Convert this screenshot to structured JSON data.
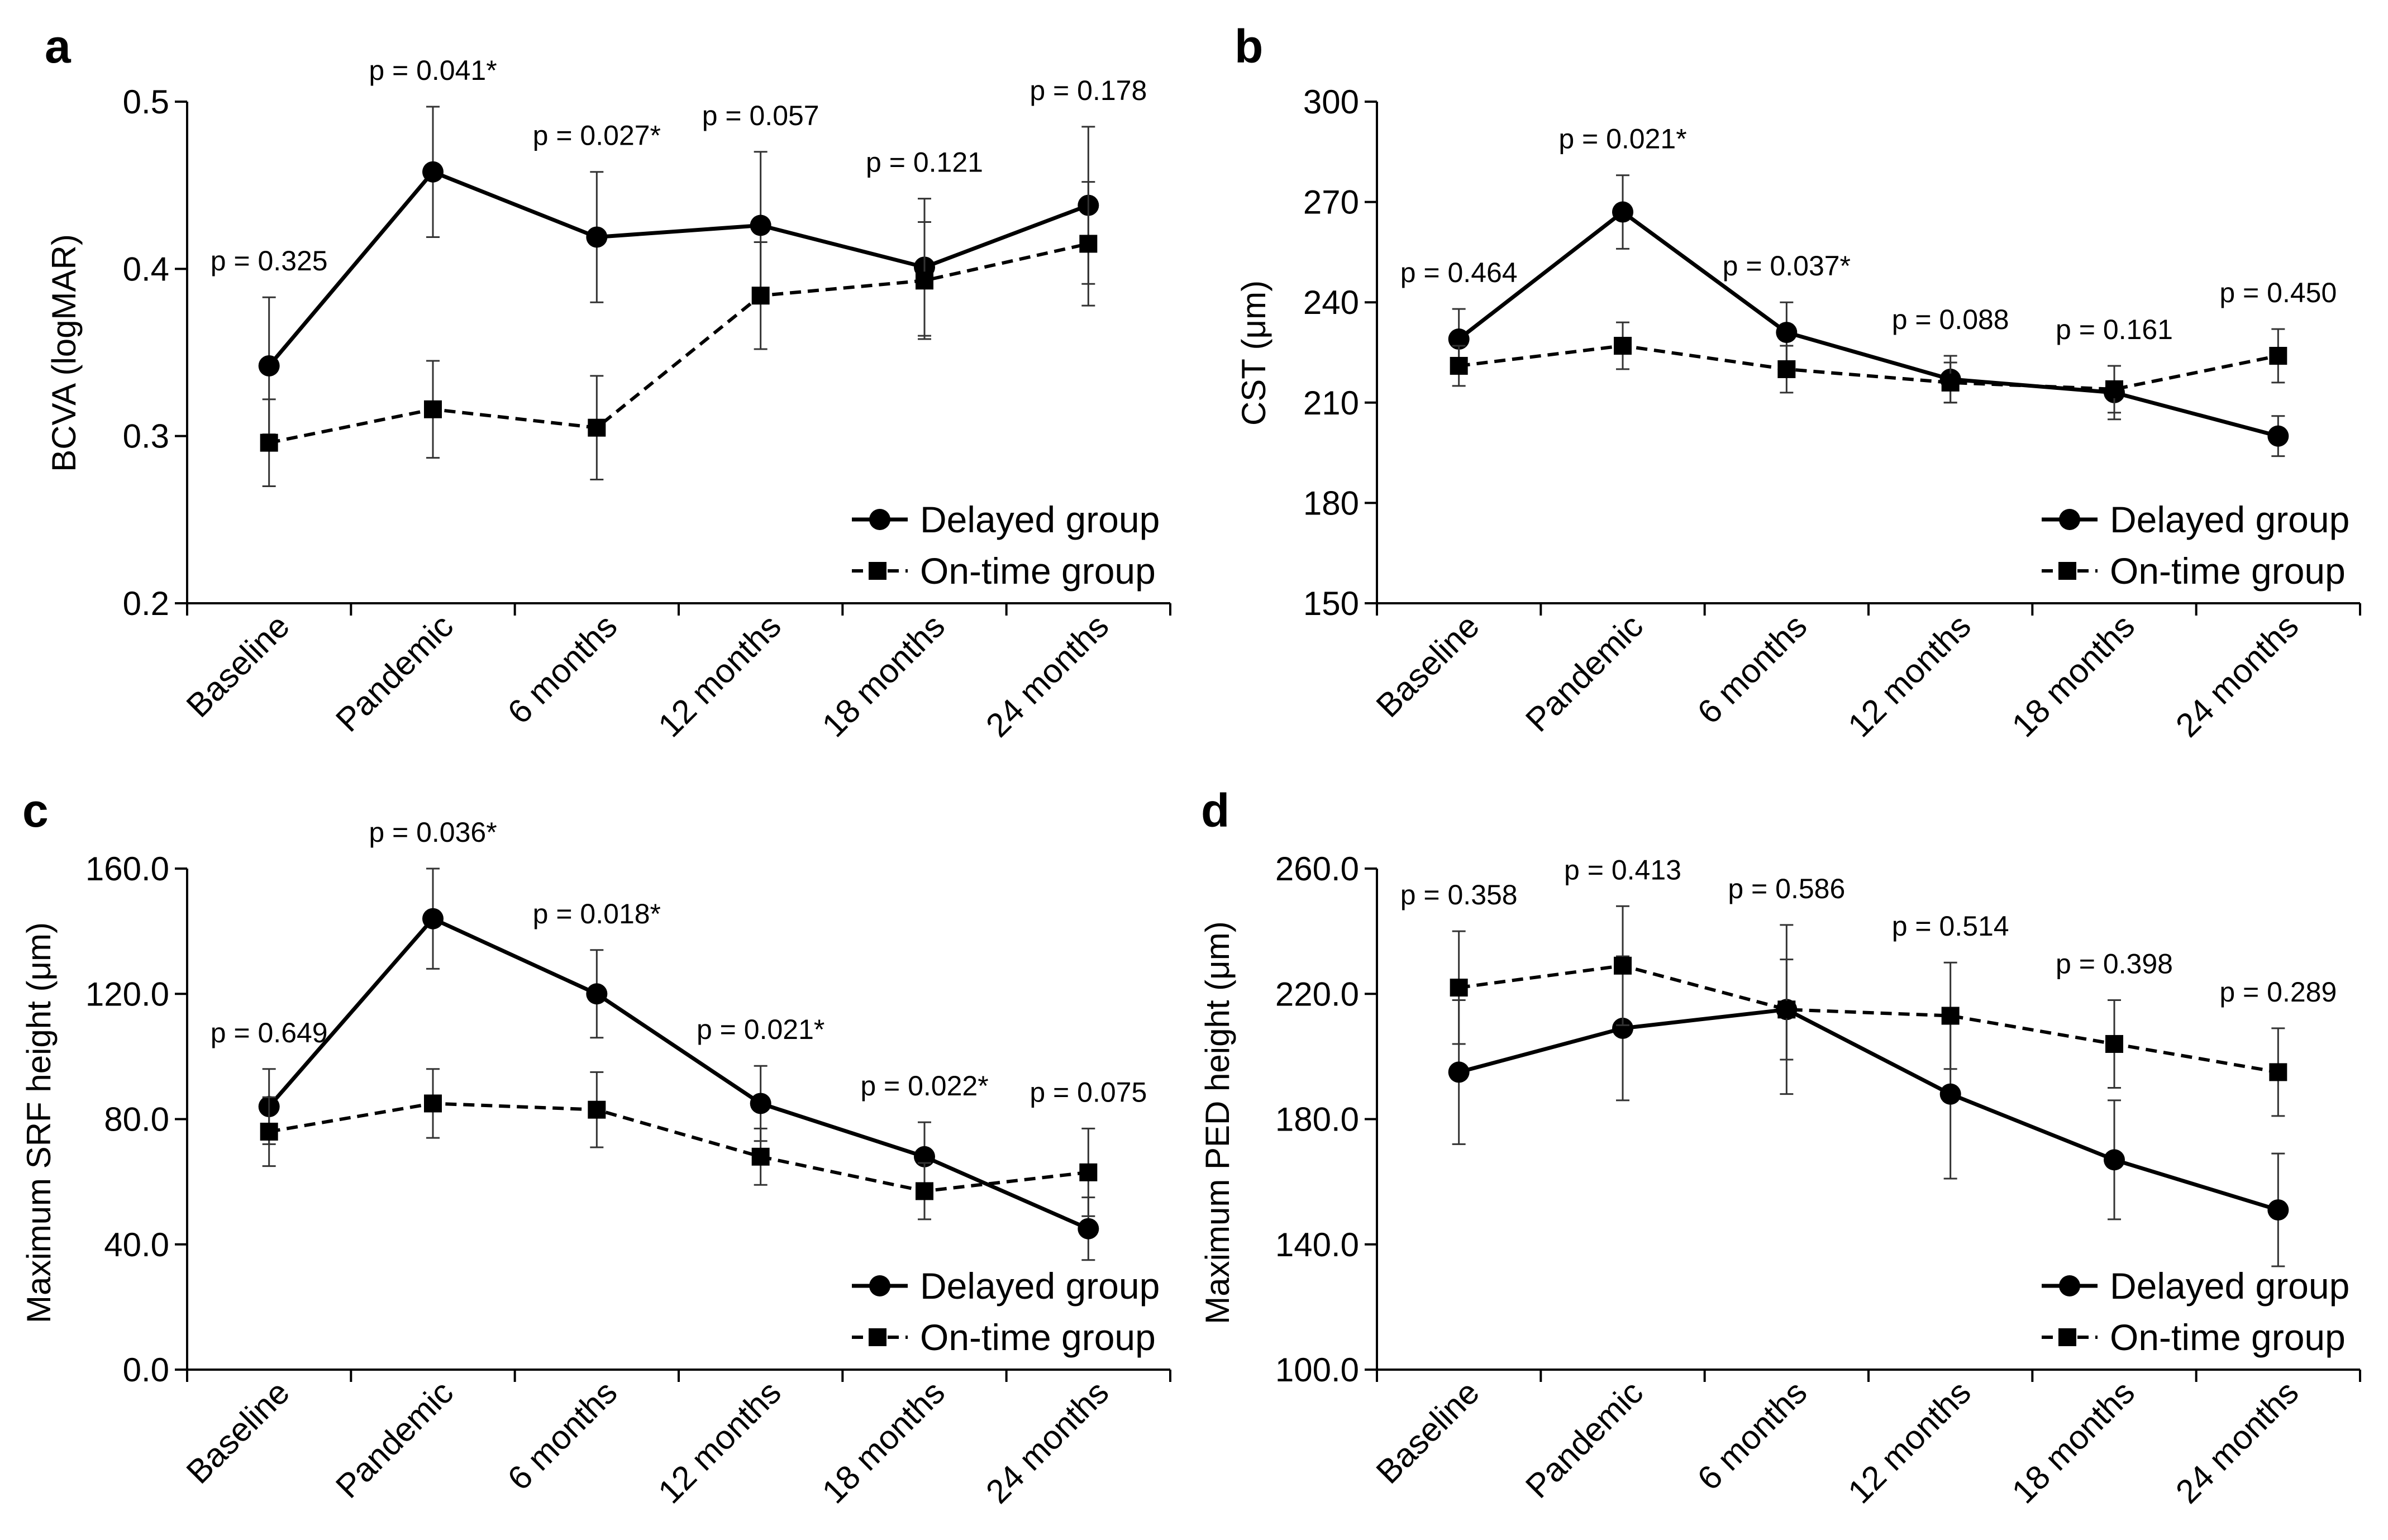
{
  "colors": {
    "axis": "#000000",
    "series": "#000000",
    "background": "#ffffff"
  },
  "chart_data": [
    {
      "type": "line",
      "panel": "a",
      "ylabel": "BCVA (logMAR)",
      "ylim": [
        0.2,
        0.5
      ],
      "yticks": [
        "0.2",
        "0.3",
        "0.4",
        "0.5"
      ],
      "categories": [
        "Baseline",
        "Pandemic",
        "6 months",
        "12 months",
        "18 months",
        "24 months"
      ],
      "pvalues": [
        "p = 0.325",
        "p = 0.041*",
        "p = 0.027*",
        "p = 0.057",
        "p = 0.121",
        "p = 0.178"
      ],
      "series": [
        {
          "name": "Delayed group",
          "marker": "circle",
          "style": "solid",
          "values": [
            0.342,
            0.458,
            0.419,
            0.426,
            0.401,
            0.438
          ],
          "errors": [
            0.041,
            0.039,
            0.039,
            0.044,
            0.041,
            0.047
          ]
        },
        {
          "name": "On-time group",
          "marker": "square",
          "style": "dashed",
          "values": [
            0.296,
            0.316,
            0.305,
            0.384,
            0.393,
            0.415
          ],
          "errors": [
            0.026,
            0.029,
            0.031,
            0.032,
            0.035,
            0.037
          ]
        }
      ]
    },
    {
      "type": "line",
      "panel": "b",
      "ylabel": "CST (μm)",
      "ylim": [
        150,
        300
      ],
      "yticks": [
        "150",
        "180",
        "210",
        "240",
        "270",
        "300"
      ],
      "categories": [
        "Baseline",
        "Pandemic",
        "6 months",
        "12 months",
        "18 months",
        "24 months"
      ],
      "pvalues": [
        "p = 0.464",
        "p = 0.021*",
        "p = 0.037*",
        "p = 0.088",
        "p = 0.161",
        "p = 0.450"
      ],
      "series": [
        {
          "name": "Delayed group",
          "marker": "circle",
          "style": "solid",
          "values": [
            229,
            267,
            231,
            217,
            213,
            200
          ],
          "errors": [
            9,
            11,
            9,
            7,
            8,
            6
          ]
        },
        {
          "name": "On-time group",
          "marker": "square",
          "style": "dashed",
          "values": [
            221,
            227,
            220,
            216,
            214,
            224
          ],
          "errors": [
            6,
            7,
            7,
            6,
            7,
            8
          ]
        }
      ]
    },
    {
      "type": "line",
      "panel": "c",
      "ylabel": "Maximum SRF height (μm)",
      "ylim": [
        0,
        160
      ],
      "yticks": [
        "0.0",
        "40.0",
        "80.0",
        "120.0",
        "160.0"
      ],
      "categories": [
        "Baseline",
        "Pandemic",
        "6 months",
        "12 months",
        "18 months",
        "24 months"
      ],
      "pvalues": [
        "p = 0.649",
        "p = 0.036*",
        "p = 0.018*",
        "p = 0.021*",
        "p = 0.022*",
        "p = 0.075"
      ],
      "series": [
        {
          "name": "Delayed group",
          "marker": "circle",
          "style": "solid",
          "values": [
            84,
            144,
            120,
            85,
            68,
            45
          ],
          "errors": [
            12,
            16,
            14,
            12,
            11,
            10
          ]
        },
        {
          "name": "On-time group",
          "marker": "square",
          "style": "dashed",
          "values": [
            76,
            85,
            83,
            68,
            57,
            63
          ],
          "errors": [
            11,
            11,
            12,
            9,
            9,
            14
          ]
        }
      ]
    },
    {
      "type": "line",
      "panel": "d",
      "ylabel": "Maximum PED height (μm)",
      "ylim": [
        100,
        260
      ],
      "yticks": [
        "100.0",
        "140.0",
        "180.0",
        "220.0",
        "260.0"
      ],
      "categories": [
        "Baseline",
        "Pandemic",
        "6 months",
        "12 months",
        "18 months",
        "24 months"
      ],
      "pvalues": [
        "p = 0.358",
        "p = 0.413",
        "p = 0.586",
        "p = 0.514",
        "p = 0.398",
        "p = 0.289"
      ],
      "series": [
        {
          "name": "Delayed group",
          "marker": "circle",
          "style": "solid",
          "values": [
            195,
            209,
            215,
            188,
            167,
            151
          ],
          "errors": [
            23,
            23,
            27,
            27,
            19,
            18
          ]
        },
        {
          "name": "On-time group",
          "marker": "square",
          "style": "dashed",
          "values": [
            222,
            229,
            215,
            213,
            204,
            195
          ],
          "errors": [
            18,
            19,
            16,
            17,
            14,
            14
          ]
        }
      ]
    }
  ]
}
